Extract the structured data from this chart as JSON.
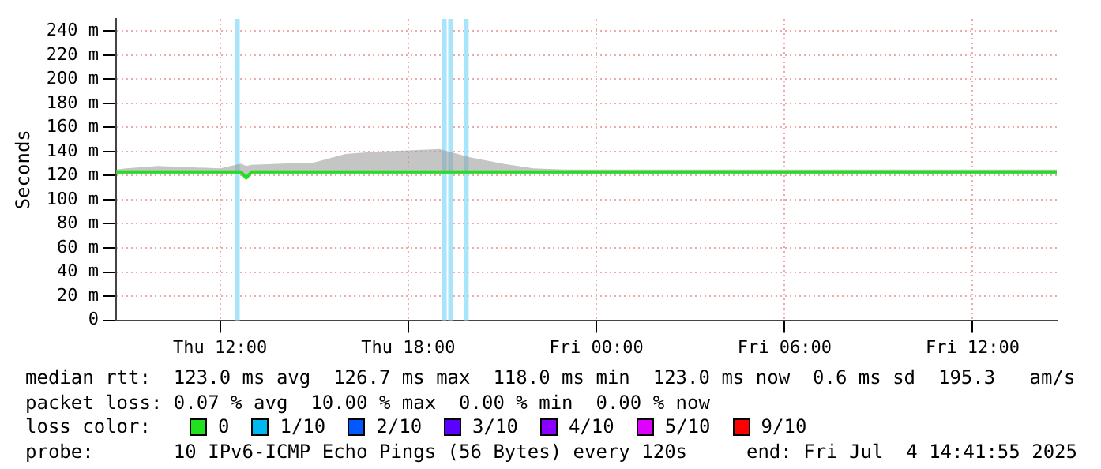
{
  "chart_data": {
    "type": "line",
    "ylabel": "Seconds",
    "legend_title": "loss color:",
    "legend": "bottom",
    "grid": true,
    "marker": "none",
    "line_style": "solid",
    "xlim": [
      "2025-07-03T08:41",
      "2025-07-04T14:41"
    ],
    "xticks": [
      {
        "value": "2025-07-03T12:00",
        "label": "Thu 12:00"
      },
      {
        "value": "2025-07-03T18:00",
        "label": "Thu 18:00"
      },
      {
        "value": "2025-07-04T00:00",
        "label": "Fri 00:00"
      },
      {
        "value": "2025-07-04T06:00",
        "label": "Fri 06:00"
      },
      {
        "value": "2025-07-04T12:00",
        "label": "Fri 12:00"
      }
    ],
    "ylim": [
      0,
      250
    ],
    "yticks": [
      0,
      {
        "value": 20,
        "label": "20 m"
      },
      {
        "value": 40,
        "label": "40 m"
      },
      {
        "value": 60,
        "label": "60 m"
      },
      {
        "value": 80,
        "label": "80 m"
      },
      {
        "value": 100,
        "label": "100 m"
      },
      {
        "value": 120,
        "label": "120 m"
      },
      {
        "value": 140,
        "label": "140 m"
      },
      {
        "value": 160,
        "label": "160 m"
      },
      {
        "value": 180,
        "label": "180 m"
      },
      {
        "value": 200,
        "label": "200 m"
      },
      {
        "value": 220,
        "label": "220 m"
      },
      {
        "value": 240,
        "label": "240 m"
      }
    ],
    "x": [
      "2025-07-03T08:41",
      "2025-07-03T09:00",
      "2025-07-03T10:00",
      "2025-07-03T11:00",
      "2025-07-03T12:00",
      "2025-07-03T12:40",
      "2025-07-03T12:50",
      "2025-07-03T13:00",
      "2025-07-03T14:00",
      "2025-07-03T15:00",
      "2025-07-03T16:00",
      "2025-07-03T17:00",
      "2025-07-03T18:00",
      "2025-07-03T19:00",
      "2025-07-03T20:00",
      "2025-07-03T21:00",
      "2025-07-03T22:00",
      "2025-07-03T23:00",
      "2025-07-04T00:00",
      "2025-07-04T02:00",
      "2025-07-04T04:00",
      "2025-07-04T06:00",
      "2025-07-04T08:00",
      "2025-07-04T10:00",
      "2025-07-04T12:00",
      "2025-07-04T14:00",
      "2025-07-04T14:41"
    ],
    "series": [
      {
        "name": "0",
        "color": "#20e020",
        "values": [
          123,
          123,
          123,
          123,
          123,
          123,
          118,
          123,
          123,
          123,
          123,
          123,
          123,
          123,
          123,
          123,
          123,
          123,
          123,
          123,
          123,
          123,
          123,
          123,
          123,
          123,
          123
        ],
        "lower": [
          121,
          121,
          121,
          121,
          121,
          121,
          117,
          121,
          121,
          121,
          121,
          121,
          121,
          121,
          121,
          121,
          121,
          121,
          121,
          121,
          121,
          121,
          121,
          121,
          121,
          121,
          121
        ],
        "upper": [
          125,
          126,
          128,
          127,
          126,
          130,
          128,
          129,
          130,
          131,
          138,
          140,
          141,
          142,
          135,
          130,
          126,
          125,
          125,
          125,
          125,
          125,
          125,
          125,
          125,
          125,
          125
        ]
      },
      {
        "name": "1/10",
        "color": "#00b8f0",
        "values": [
          null,
          null,
          null,
          null,
          null,
          null,
          null,
          null,
          null,
          null,
          null,
          null,
          null,
          null,
          null,
          null,
          null,
          null,
          null,
          null,
          null,
          null,
          null,
          null,
          null,
          null,
          null
        ]
      },
      {
        "name": "2/10",
        "color": "#0058ff",
        "values": [
          null,
          null,
          null,
          null,
          null,
          null,
          null,
          null,
          null,
          null,
          null,
          null,
          null,
          null,
          null,
          null,
          null,
          null,
          null,
          null,
          null,
          null,
          null,
          null,
          null,
          null,
          null
        ]
      },
      {
        "name": "3/10",
        "color": "#5a00ff",
        "values": [
          null,
          null,
          null,
          null,
          null,
          null,
          null,
          null,
          null,
          null,
          null,
          null,
          null,
          null,
          null,
          null,
          null,
          null,
          null,
          null,
          null,
          null,
          null,
          null,
          null,
          null,
          null
        ]
      },
      {
        "name": "4/10",
        "color": "#8a00ff",
        "values": [
          null,
          null,
          null,
          null,
          null,
          null,
          null,
          null,
          null,
          null,
          null,
          null,
          null,
          null,
          null,
          null,
          null,
          null,
          null,
          null,
          null,
          null,
          null,
          null,
          null,
          null,
          null
        ]
      },
      {
        "name": "5/10",
        "color": "#e000ff",
        "values": [
          null,
          null,
          null,
          null,
          null,
          null,
          null,
          null,
          null,
          null,
          null,
          null,
          null,
          null,
          null,
          null,
          null,
          null,
          null,
          null,
          null,
          null,
          null,
          null,
          null,
          null,
          null
        ]
      },
      {
        "name": "9/10",
        "color": "#ff0000",
        "values": [
          null,
          null,
          null,
          null,
          null,
          null,
          null,
          null,
          null,
          null,
          null,
          null,
          null,
          null,
          null,
          null,
          null,
          null,
          null,
          null,
          null,
          null,
          null,
          null,
          null,
          null,
          null
        ]
      }
    ],
    "ref_lines": [
      {
        "axis": "x",
        "value": "2025-07-03T12:33",
        "color": "#a8e4fa"
      },
      {
        "axis": "x",
        "value": "2025-07-03T19:09",
        "color": "#a8e4fa"
      },
      {
        "axis": "x",
        "value": "2025-07-03T19:21",
        "color": "#a8e4fa"
      },
      {
        "axis": "x",
        "value": "2025-07-03T19:51",
        "color": "#a8e4fa"
      }
    ],
    "annotations": [
      "median rtt:  123.0 ms avg  126.7 ms max  118.0 ms min  123.0 ms now  0.6 ms sd  195.3   am/s",
      "packet loss: 0.07 % avg  10.00 % max  0.00 % min  0.00 % now",
      "probe:       10 IPv6-ICMP Echo Pings (56 Bytes) every 120s",
      "end: Fri Jul  4 14:41:55 2025"
    ]
  }
}
